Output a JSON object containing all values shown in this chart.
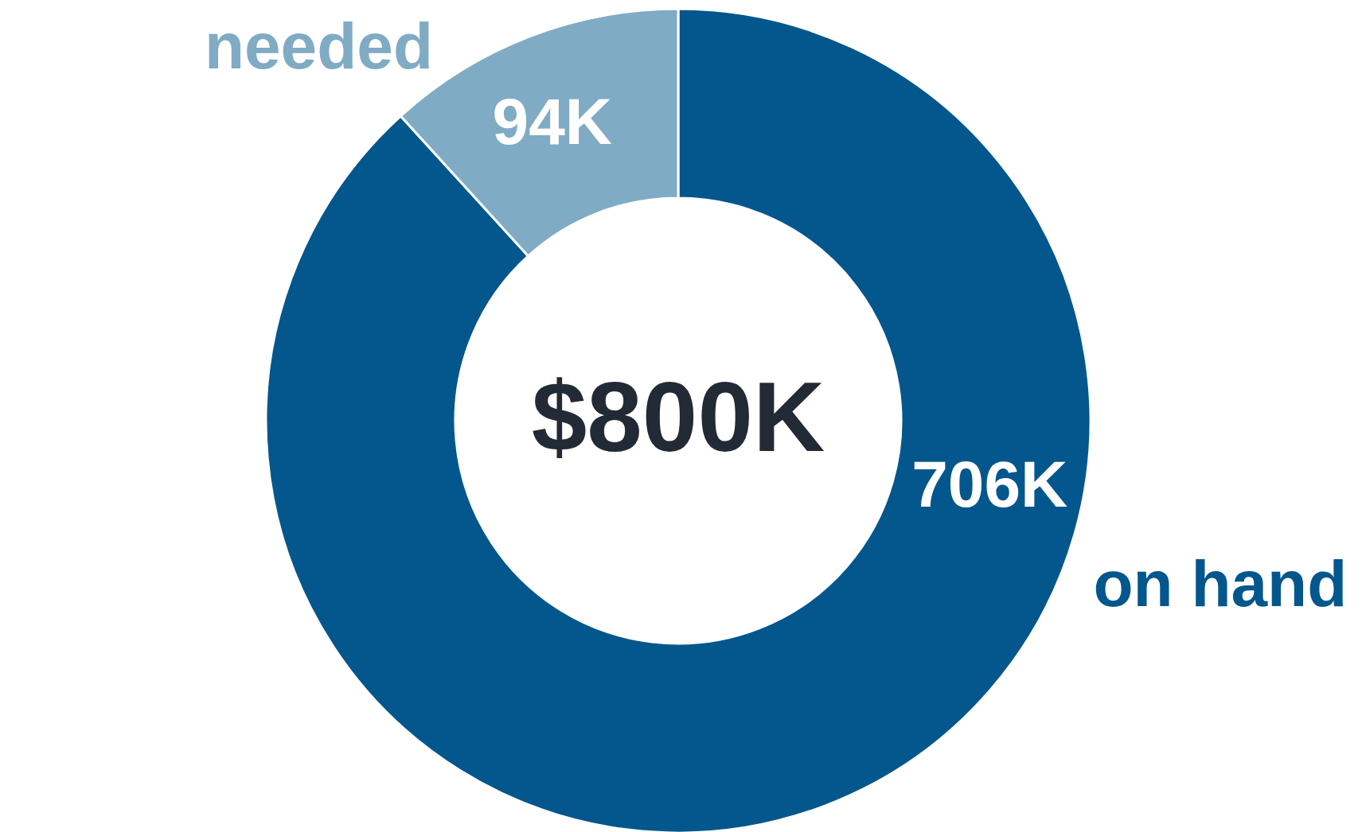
{
  "chart_data": {
    "type": "donut",
    "annotations": [
      "$800K"
    ],
    "categories": [
      "on hand",
      "needed"
    ],
    "values": [
      706,
      94
    ],
    "value_labels": [
      "706K",
      "94K"
    ],
    "colors": [
      "#04578c",
      "#80abc4"
    ]
  }
}
